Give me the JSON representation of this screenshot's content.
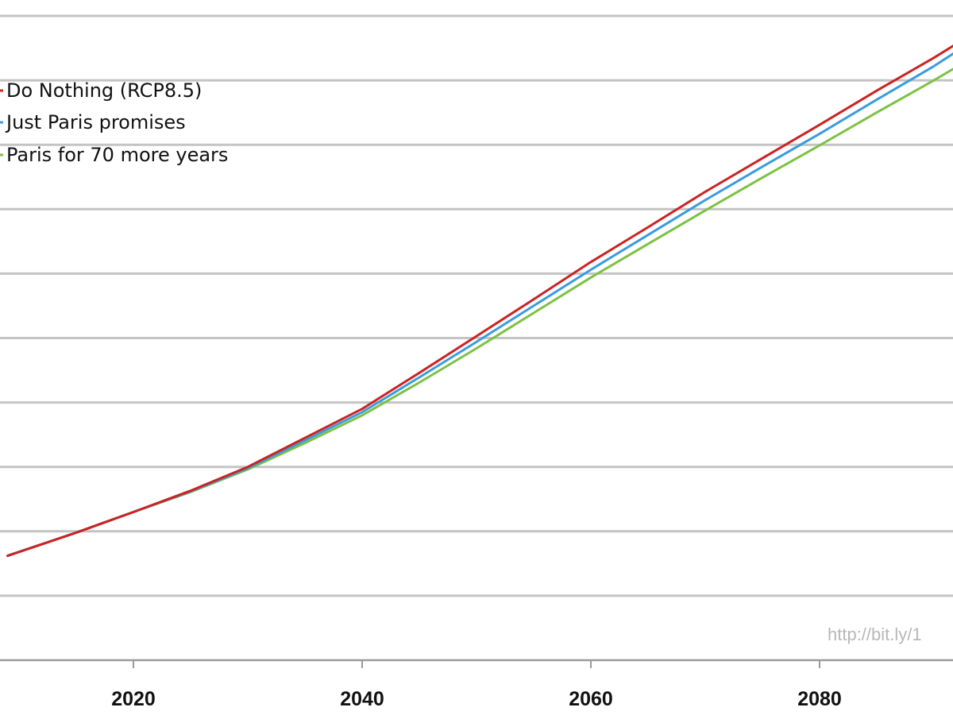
{
  "chart_data": {
    "type": "line",
    "title": "",
    "xlabel": "",
    "ylabel": "",
    "xlim": [
      2009,
      2092
    ],
    "ylim": [
      0,
      10
    ],
    "grid": true,
    "legend_position": "top-left",
    "x_ticks": [
      2020,
      2040,
      2060,
      2080
    ],
    "x_tick_labels": [
      "2020",
      "2040",
      "2060",
      "2080"
    ],
    "y_gridlines": [
      0,
      1,
      2,
      3,
      4,
      5,
      6,
      7,
      8,
      9,
      10
    ],
    "watermark": "http://bit.ly/1",
    "x": [
      2009,
      2015,
      2020,
      2025,
      2030,
      2035,
      2040,
      2045,
      2050,
      2055,
      2060,
      2065,
      2070,
      2075,
      2080,
      2085,
      2090,
      2092
    ],
    "series": [
      {
        "name": "Do Nothing (RCP8.5)",
        "color": "#cc2222",
        "values": [
          1.62,
          1.98,
          2.3,
          2.63,
          3.0,
          3.45,
          3.9,
          4.46,
          5.03,
          5.6,
          6.18,
          6.72,
          7.27,
          7.79,
          8.31,
          8.84,
          9.35,
          9.57
        ]
      },
      {
        "name": "Just Paris promises",
        "color": "#3a9be0",
        "values": [
          1.62,
          1.98,
          2.3,
          2.62,
          2.98,
          3.41,
          3.85,
          4.39,
          4.94,
          5.5,
          6.06,
          6.6,
          7.14,
          7.66,
          8.17,
          8.7,
          9.22,
          9.45
        ]
      },
      {
        "name": "Paris for 70 more years",
        "color": "#7cc242",
        "values": [
          1.62,
          1.98,
          2.3,
          2.61,
          2.96,
          3.37,
          3.8,
          4.31,
          4.84,
          5.39,
          5.94,
          6.46,
          6.98,
          7.49,
          7.99,
          8.5,
          9.0,
          9.21
        ]
      }
    ]
  }
}
